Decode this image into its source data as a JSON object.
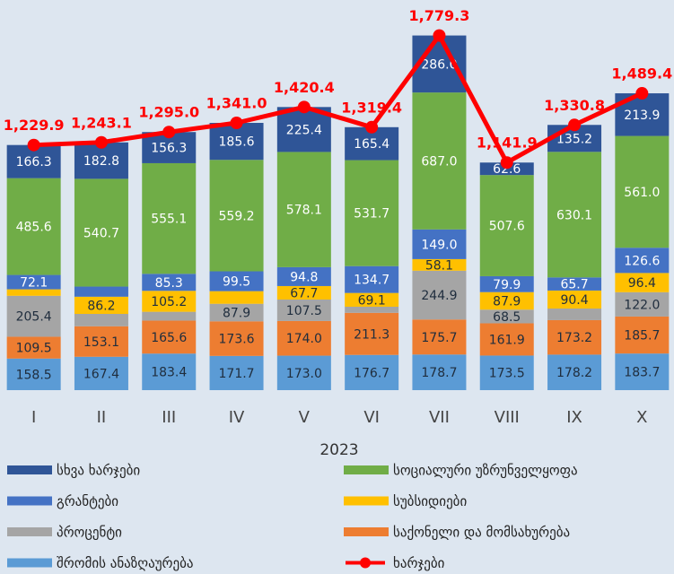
{
  "chart_data": {
    "type": "bar",
    "stacked": true,
    "x_label": "2023",
    "categories": [
      "I",
      "II",
      "III",
      "IV",
      "V",
      "VI",
      "VII",
      "VIII",
      "IX",
      "X"
    ],
    "ylim": [
      0,
      1800
    ],
    "series": [
      {
        "name": "შრომის ანაზღაურება",
        "color": "#5b9bd5",
        "text_color": "#1f2d3d",
        "values": [
          158.5,
          167.4,
          183.4,
          171.7,
          173.0,
          176.7,
          178.7,
          173.5,
          178.2,
          183.7
        ],
        "value_labels": [
          "158.5",
          "167.4",
          "183.4",
          "171.7",
          "173.0",
          "176.7",
          "178.7",
          "173.5",
          "178.2",
          "183.7"
        ]
      },
      {
        "name": "საქონელი და მომსახურება",
        "color": "#ed7d31",
        "text_color": "#1f2d3d",
        "values": [
          109.5,
          153.1,
          165.6,
          173.6,
          174.0,
          211.3,
          175.7,
          161.9,
          173.2,
          185.7
        ],
        "value_labels": [
          "109.5",
          "153.1",
          "165.6",
          "173.6",
          "174.0",
          "211.3",
          "175.7",
          "161.9",
          "173.2",
          "185.7"
        ]
      },
      {
        "name": "პროცენტი",
        "color": "#a5a5a5",
        "text_color": "#1f2d3d",
        "values": [
          205.4,
          62.0,
          44.1,
          87.9,
          107.5,
          30.5,
          244.9,
          68.5,
          58.0,
          122.0
        ],
        "value_labels": [
          "205.4",
          null,
          null,
          "87.9",
          "107.5",
          null,
          "244.9",
          "68.5",
          null,
          "122.0"
        ]
      },
      {
        "name": "სუბსიდიები",
        "color": "#ffc000",
        "text_color": "#1f2d3d",
        "values": [
          32.5,
          86.2,
          105.2,
          63.5,
          67.7,
          69.1,
          58.1,
          87.9,
          90.4,
          96.4
        ],
        "value_labels": [
          null,
          "86.2",
          "105.2",
          null,
          "67.7",
          "69.1",
          "58.1",
          "87.9",
          "90.4",
          "96.4"
        ]
      },
      {
        "name": "გრანტები",
        "color": "#4472c4",
        "text_color": "#ffffff",
        "values": [
          72.1,
          50.9,
          85.3,
          99.5,
          94.8,
          134.7,
          149.0,
          79.9,
          65.7,
          126.6
        ],
        "value_labels": [
          "72.1",
          null,
          "85.3",
          "99.5",
          "94.8",
          "134.7",
          "149.0",
          "79.9",
          "65.7",
          "126.6"
        ]
      },
      {
        "name": "სოციალური უზრუნველყოფა",
        "color": "#70ad47",
        "text_color": "#ffffff",
        "values": [
          485.6,
          540.7,
          555.1,
          559.2,
          578.1,
          531.7,
          687.0,
          507.6,
          630.1,
          561.0
        ],
        "value_labels": [
          "485.6",
          "540.7",
          "555.1",
          "559.2",
          "578.1",
          "531.7",
          "687.0",
          "507.6",
          "630.1",
          "561.0"
        ]
      },
      {
        "name": "სხვა ხარჯები",
        "color": "#2f5597",
        "text_color": "#ffffff",
        "values": [
          166.3,
          182.8,
          156.3,
          185.6,
          225.4,
          165.4,
          286.0,
          62.6,
          135.2,
          213.9
        ],
        "value_labels": [
          "166.3",
          "182.8",
          "156.3",
          "185.6",
          "225.4",
          "165.4",
          "286.0",
          "62.6",
          "135.2",
          "213.9"
        ]
      },
      {
        "name": "ხარჯები",
        "type": "line",
        "color": "#ff0000",
        "values": [
          1229.9,
          1243.1,
          1295.0,
          1341.0,
          1420.4,
          1319.4,
          1779.3,
          1141.9,
          1330.8,
          1489.4
        ],
        "value_labels": [
          "1,229.9",
          "1,243.1",
          "1,295.0",
          "1,341.0",
          "1,420.4",
          "1,319.4",
          "1,779.3",
          "1,141.9",
          "1,330.8",
          "1,489.4"
        ]
      }
    ]
  }
}
